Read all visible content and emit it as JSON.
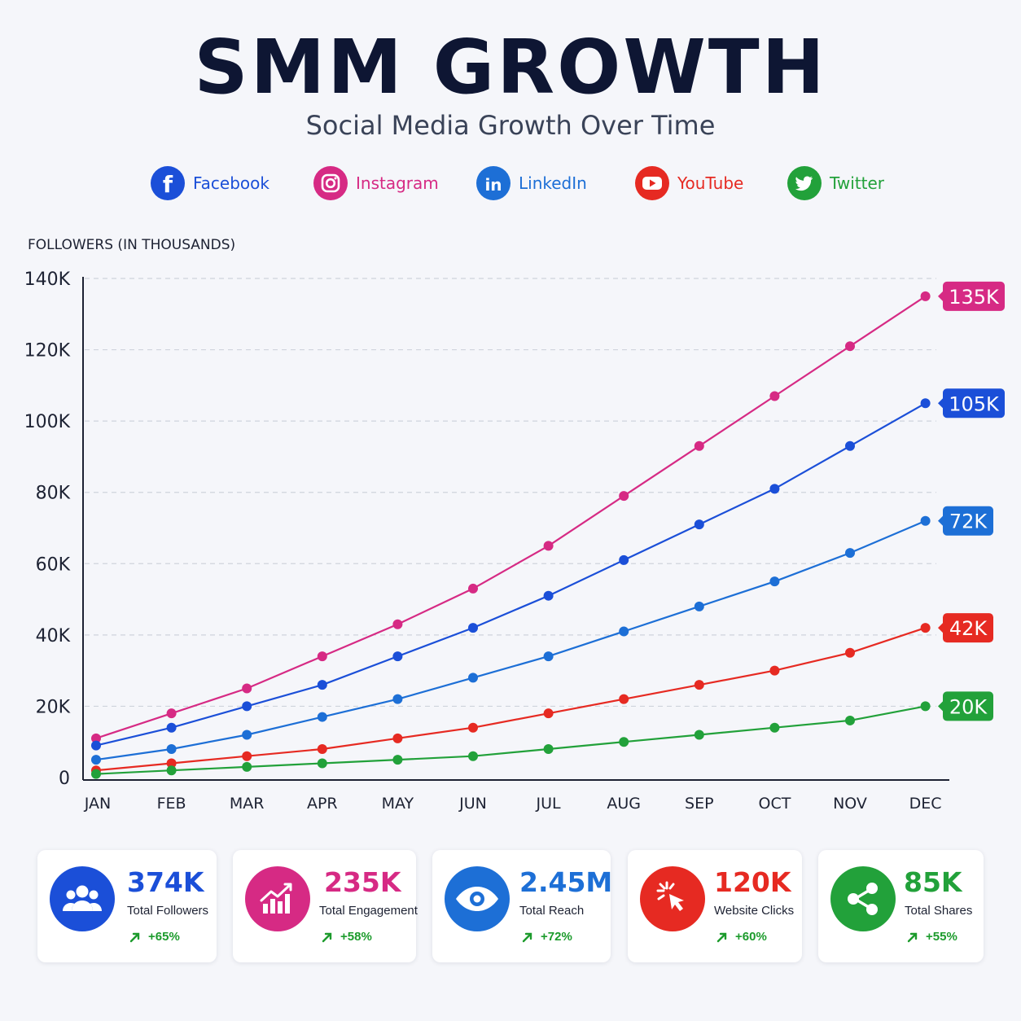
{
  "header": {
    "title": "SMM GROWTH",
    "subtitle": "Social Media Growth Over Time"
  },
  "legend": [
    {
      "label": "Facebook",
      "color": "#1b4fd8",
      "icon": "facebook-icon"
    },
    {
      "label": "Instagram",
      "color": "#d62a84",
      "icon": "instagram-icon"
    },
    {
      "label": "LinkedIn",
      "color": "#1d6fd6",
      "icon": "linkedin-icon"
    },
    {
      "label": "YouTube",
      "color": "#e62a22",
      "icon": "youtube-icon"
    },
    {
      "label": "Twitter",
      "color": "#22a13a",
      "icon": "twitter-icon"
    }
  ],
  "chart_data": {
    "type": "line",
    "ylabel": "FOLLOWERS (IN THOUSANDS)",
    "ylim": [
      0,
      140
    ],
    "yticks": [
      0,
      20,
      40,
      60,
      80,
      100,
      120,
      140
    ],
    "ytick_labels": [
      "0",
      "20K",
      "40K",
      "60K",
      "80K",
      "100K",
      "120K",
      "140K"
    ],
    "categories": [
      "JAN",
      "FEB",
      "MAR",
      "APR",
      "MAY",
      "JUN",
      "JUL",
      "AUG",
      "SEP",
      "OCT",
      "NOV",
      "DEC"
    ],
    "grid": true,
    "series": [
      {
        "name": "Instagram",
        "color": "#d62a84",
        "end_label": "135K",
        "values": [
          11,
          18,
          25,
          34,
          43,
          53,
          65,
          79,
          93,
          107,
          121,
          135
        ]
      },
      {
        "name": "Facebook",
        "color": "#1b4fd8",
        "end_label": "105K",
        "values": [
          9,
          14,
          20,
          26,
          34,
          42,
          51,
          61,
          71,
          81,
          93,
          105
        ]
      },
      {
        "name": "LinkedIn",
        "color": "#1d6fd6",
        "end_label": "72K",
        "values": [
          5,
          8,
          12,
          17,
          22,
          28,
          34,
          41,
          48,
          55,
          63,
          72
        ]
      },
      {
        "name": "YouTube",
        "color": "#e62a22",
        "end_label": "42K",
        "values": [
          2,
          4,
          6,
          8,
          11,
          14,
          18,
          22,
          26,
          30,
          35,
          42
        ]
      },
      {
        "name": "Twitter",
        "color": "#22a13a",
        "end_label": "20K",
        "values": [
          1,
          2,
          3,
          4,
          5,
          6,
          8,
          10,
          12,
          14,
          16,
          20
        ]
      }
    ]
  },
  "stats": [
    {
      "value": "374K",
      "label": "Total Followers",
      "change": "+65%",
      "color": "#1b4fd8",
      "icon": "users-icon"
    },
    {
      "value": "235K",
      "label": "Total Engagement",
      "change": "+58%",
      "color": "#d62a84",
      "icon": "engagement-chart-icon"
    },
    {
      "value": "2.45M",
      "label": "Total Reach",
      "change": "+72%",
      "color": "#1d6fd6",
      "icon": "eye-icon"
    },
    {
      "value": "120K",
      "label": "Website Clicks",
      "change": "+60%",
      "color": "#e62a22",
      "icon": "cursor-click-icon"
    },
    {
      "value": "85K",
      "label": "Total Shares",
      "change": "+55%",
      "color": "#22a13a",
      "icon": "share-icon"
    }
  ]
}
